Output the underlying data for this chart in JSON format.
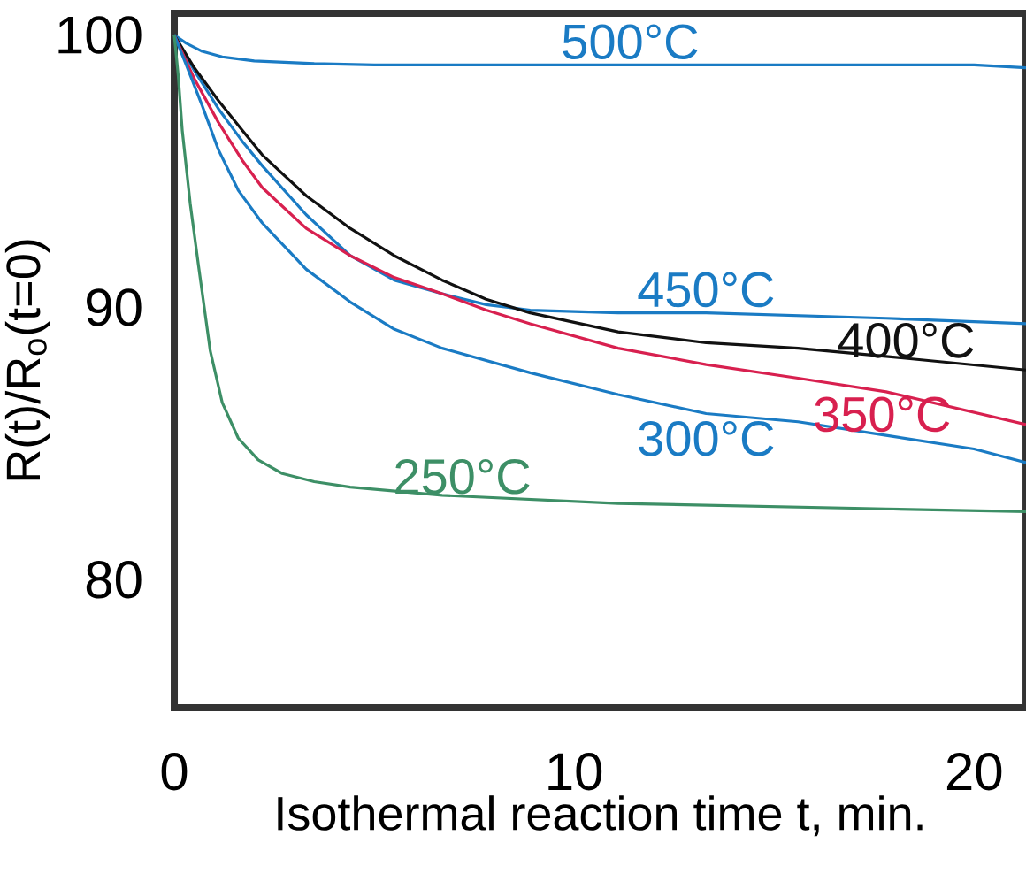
{
  "chart_data": {
    "type": "line",
    "xlabel": "Isothermal reaction time t, min.",
    "ylabel": "R(t)/R$_{o}$(t=0)",
    "xlim": [
      0,
      21.3
    ],
    "ylim": [
      75.3,
      100.8
    ],
    "xticks": [
      0,
      10,
      20
    ],
    "yticks": [
      80,
      90,
      100
    ],
    "grid": false,
    "marker": "none",
    "line_style": "solid",
    "series": [
      {
        "name": "500°C",
        "color": "#1a7bc4",
        "x": [
          0,
          0.3,
          0.7,
          1.2,
          2,
          3.5,
          5,
          10,
          15,
          20,
          21.3
        ],
        "values": [
          100,
          99.7,
          99.4,
          99.2,
          99.05,
          98.95,
          98.9,
          98.9,
          98.9,
          98.9,
          98.8
        ]
      },
      {
        "name": "450°C",
        "color": "#1a7bc4",
        "x": [
          0,
          0.5,
          1.1,
          1.7,
          2.2,
          3.3,
          4.4,
          5.5,
          6.7,
          7.8,
          8.9,
          11.1,
          13.3,
          17.8,
          21.3
        ],
        "values": [
          100,
          98.7,
          97.3,
          96.1,
          95.2,
          93.4,
          91.9,
          91.0,
          90.5,
          90.1,
          89.9,
          89.8,
          89.8,
          89.6,
          89.4
        ]
      },
      {
        "name": "400°C",
        "color": "#111111",
        "x": [
          0,
          0.5,
          1.1,
          1.7,
          2.2,
          3.3,
          4.4,
          5.5,
          6.7,
          7.8,
          8.9,
          11.1,
          13.3,
          15.6,
          17.8,
          21.3
        ],
        "values": [
          100,
          98.8,
          97.6,
          96.5,
          95.6,
          94.1,
          92.9,
          91.9,
          91.0,
          90.3,
          89.8,
          89.1,
          88.7,
          88.5,
          88.2,
          87.7
        ]
      },
      {
        "name": "350°C",
        "color": "#d8204f",
        "x": [
          0,
          0.5,
          1.1,
          1.7,
          2.2,
          3.3,
          4.4,
          5.5,
          6.7,
          7.8,
          8.9,
          11.1,
          13.3,
          15.6,
          17.8,
          21.3
        ],
        "values": [
          100,
          98.4,
          96.8,
          95.4,
          94.4,
          92.9,
          91.9,
          91.1,
          90.5,
          89.9,
          89.4,
          88.5,
          87.9,
          87.4,
          86.9,
          85.7
        ]
      },
      {
        "name": "300°C",
        "color": "#1a7bc4",
        "x": [
          0,
          0.3,
          0.7,
          1.1,
          1.6,
          2.2,
          3.3,
          4.4,
          5.5,
          6.7,
          8.9,
          11.1,
          13.3,
          15.6,
          17.8,
          20,
          21.3
        ],
        "values": [
          100,
          98.9,
          97.4,
          95.8,
          94.3,
          93.1,
          91.4,
          90.2,
          89.2,
          88.5,
          87.6,
          86.8,
          86.1,
          85.8,
          85.3,
          84.8,
          84.3
        ]
      },
      {
        "name": "250°C",
        "color": "#3d8f66",
        "x": [
          0,
          0.1,
          0.2,
          0.4,
          0.6,
          0.9,
          1.2,
          1.6,
          2.1,
          2.7,
          3.5,
          4.4,
          6.7,
          11.1,
          17.8,
          21.3
        ],
        "values": [
          100,
          98.5,
          96.5,
          93.8,
          91.6,
          88.4,
          86.5,
          85.2,
          84.4,
          83.9,
          83.6,
          83.4,
          83.1,
          82.8,
          82.6,
          82.5
        ]
      }
    ]
  }
}
